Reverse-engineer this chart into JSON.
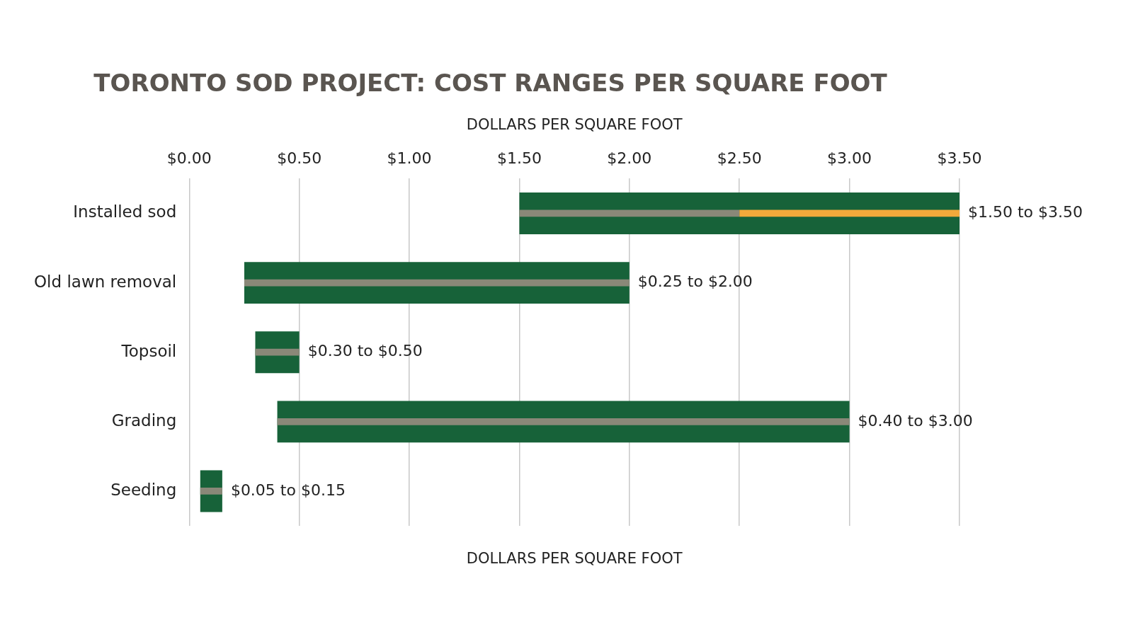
{
  "chart_data": {
    "type": "bar",
    "orientation": "horizontal",
    "title": "TORONTO SOD PROJECT: COST RANGES PER SQUARE FOOT",
    "xlabel": "DOLLARS PER SQUARE FOOT",
    "annotations": [
      "DOLLARS PER SQUARE FOOT",
      {
        "text": "$1.50 to $3.50",
        "x": 3.5,
        "y": "Installed sod"
      },
      {
        "text": "$0.25 to $2.00",
        "x": 2.0,
        "y": "Old lawn removal"
      },
      {
        "text": "$0.30 to $0.50",
        "x": 0.5,
        "y": "Topsoil"
      },
      {
        "text": "$0.40 to $3.00",
        "x": 3.0,
        "y": "Grading"
      },
      {
        "text": "$0.05 to $0.15",
        "x": 0.15,
        "y": "Seeding"
      }
    ],
    "categories": [
      "Installed sod",
      "Old lawn removal",
      "Topsoil",
      "Grading",
      "Seeding"
    ],
    "series": [
      {
        "color": "#176239",
        "base": [
          1.5,
          0.25,
          0.3,
          0.4,
          0.05
        ],
        "values": [
          2.0,
          1.75,
          0.2,
          2.6,
          0.1
        ]
      },
      {
        "color": "#8a8878",
        "base": [
          1.5,
          0.25,
          0.3,
          0.4,
          0.05
        ],
        "values": [
          1.0,
          1.75,
          0.2,
          2.6,
          0.1
        ]
      },
      {
        "color": "#f2a93b",
        "base": [
          2.5,
          null,
          null,
          null,
          null
        ],
        "values": [
          1.0,
          null,
          null,
          null,
          null
        ]
      }
    ],
    "xlim": [
      0,
      3.5
    ],
    "xticks": [
      {
        "value": 0,
        "label": "$0.00"
      },
      {
        "value": 0.5,
        "label": "$0.50"
      },
      {
        "value": 1,
        "label": "$1.00"
      },
      {
        "value": 1.5,
        "label": "$1.50"
      },
      {
        "value": 2,
        "label": "$2.00"
      },
      {
        "value": 2.5,
        "label": "$2.50"
      },
      {
        "value": 3,
        "label": "$3.00"
      },
      {
        "value": 3.5,
        "label": "$3.50"
      }
    ],
    "grid": "x",
    "legend": false
  }
}
